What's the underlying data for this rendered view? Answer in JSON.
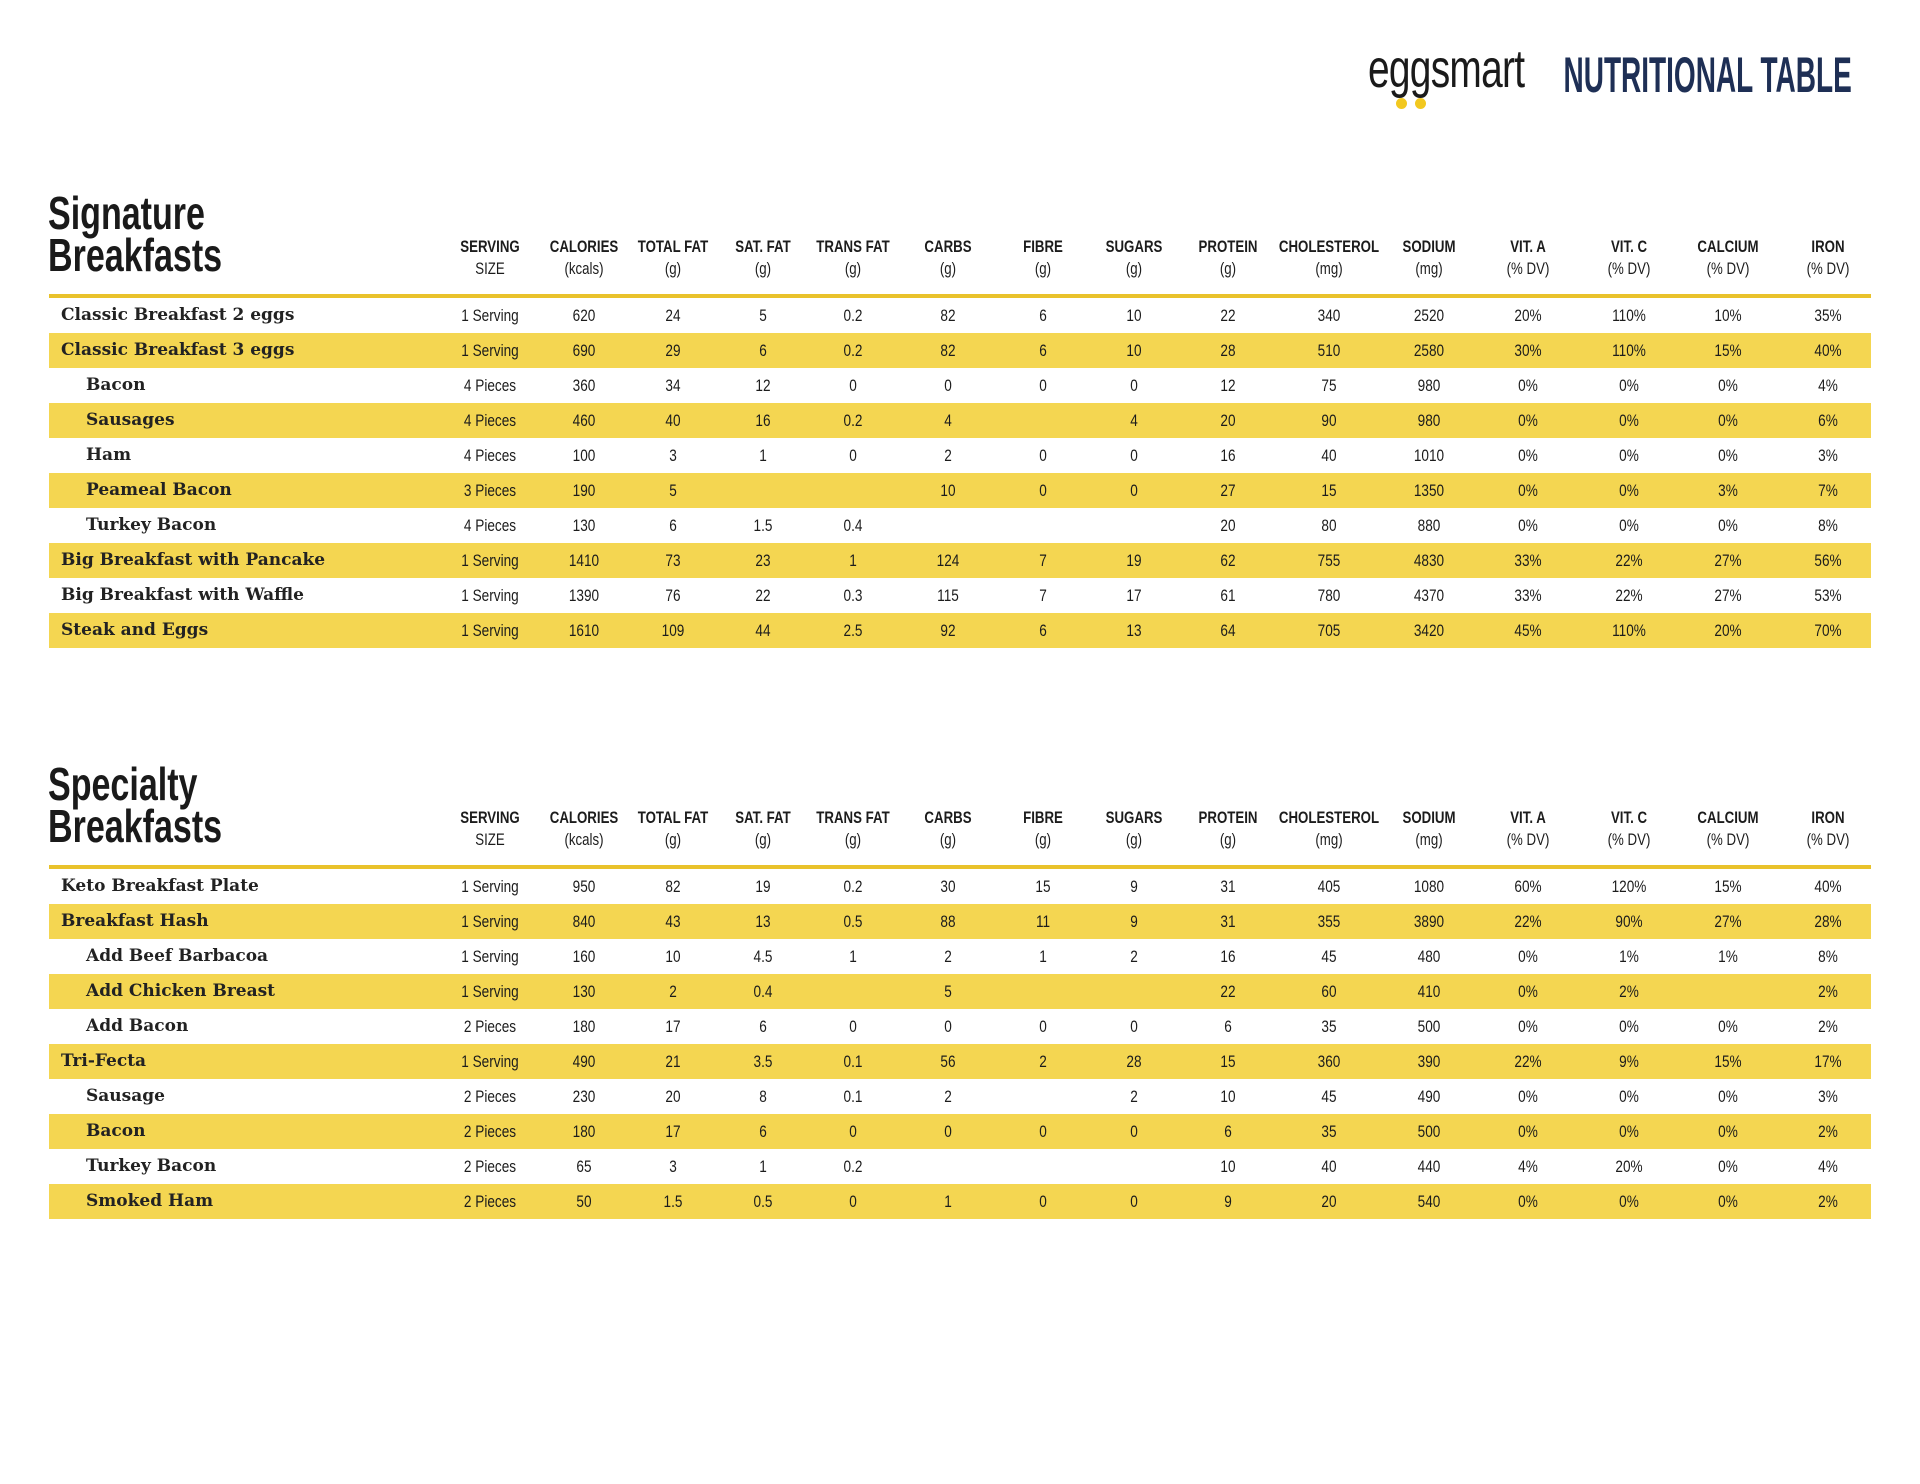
{
  "header": {
    "logo_text": "eggsmart",
    "title": "NUTRITIONAL TABLE",
    "title_color": "#1e2f55",
    "highlight_color": "#f4d651"
  },
  "columns": [
    {
      "label": "SERVING",
      "unit": "SIZE"
    },
    {
      "label": "CALORIES",
      "unit": "(kcals)"
    },
    {
      "label": "TOTAL FAT",
      "unit": "(g)"
    },
    {
      "label": "SAT. FAT",
      "unit": "(g)"
    },
    {
      "label": "TRANS FAT",
      "unit": "(g)"
    },
    {
      "label": "CARBS",
      "unit": "(g)"
    },
    {
      "label": "FIBRE",
      "unit": "(g)"
    },
    {
      "label": "SUGARS",
      "unit": "(g)"
    },
    {
      "label": "PROTEIN",
      "unit": "(g)"
    },
    {
      "label": "CHOLESTEROL",
      "unit": "(mg)"
    },
    {
      "label": "SODIUM",
      "unit": "(mg)"
    },
    {
      "label": "VIT. A",
      "unit": "(% DV)"
    },
    {
      "label": "VIT. C",
      "unit": "(% DV)"
    },
    {
      "label": "CALCIUM",
      "unit": "(% DV)"
    },
    {
      "label": "IRON",
      "unit": "(% DV)"
    }
  ],
  "sections": [
    {
      "title_lines": [
        "Signature",
        "Breakfasts"
      ],
      "rows": [
        {
          "name": "Classic Breakfast 2 eggs",
          "sub_item": false,
          "values": [
            "1 Serving",
            "620",
            "24",
            "5",
            "0.2",
            "82",
            "6",
            "10",
            "22",
            "340",
            "2520",
            "20%",
            "110%",
            "10%",
            "35%"
          ]
        },
        {
          "name": "Classic Breakfast 3 eggs",
          "sub_item": false,
          "values": [
            "1 Serving",
            "690",
            "29",
            "6",
            "0.2",
            "82",
            "6",
            "10",
            "28",
            "510",
            "2580",
            "30%",
            "110%",
            "15%",
            "40%"
          ]
        },
        {
          "name": "Bacon",
          "sub_item": true,
          "values": [
            "4 Pieces",
            "360",
            "34",
            "12",
            "0",
            "0",
            "0",
            "0",
            "12",
            "75",
            "980",
            "0%",
            "0%",
            "0%",
            "4%"
          ]
        },
        {
          "name": "Sausages",
          "sub_item": true,
          "values": [
            "4 Pieces",
            "460",
            "40",
            "16",
            "0.2",
            "4",
            "",
            "4",
            "20",
            "90",
            "980",
            "0%",
            "0%",
            "0%",
            "6%"
          ]
        },
        {
          "name": "Ham",
          "sub_item": true,
          "values": [
            "4 Pieces",
            "100",
            "3",
            "1",
            "0",
            "2",
            "0",
            "0",
            "16",
            "40",
            "1010",
            "0%",
            "0%",
            "0%",
            "3%"
          ]
        },
        {
          "name": "Peameal Bacon",
          "sub_item": true,
          "values": [
            "3 Pieces",
            "190",
            "5",
            "",
            "",
            "10",
            "0",
            "0",
            "27",
            "15",
            "1350",
            "0%",
            "0%",
            "3%",
            "7%"
          ]
        },
        {
          "name": "Turkey Bacon",
          "sub_item": true,
          "values": [
            "4 Pieces",
            "130",
            "6",
            "1.5",
            "0.4",
            "",
            "",
            "",
            "20",
            "80",
            "880",
            "0%",
            "0%",
            "0%",
            "8%"
          ]
        },
        {
          "name": "Big Breakfast with Pancake",
          "sub_item": false,
          "values": [
            "1 Serving",
            "1410",
            "73",
            "23",
            "1",
            "124",
            "7",
            "19",
            "62",
            "755",
            "4830",
            "33%",
            "22%",
            "27%",
            "56%"
          ]
        },
        {
          "name": "Big Breakfast with Waffle",
          "sub_item": false,
          "values": [
            "1 Serving",
            "1390",
            "76",
            "22",
            "0.3",
            "115",
            "7",
            "17",
            "61",
            "780",
            "4370",
            "33%",
            "22%",
            "27%",
            "53%"
          ]
        },
        {
          "name": "Steak and Eggs",
          "sub_item": false,
          "values": [
            "1 Serving",
            "1610",
            "109",
            "44",
            "2.5",
            "92",
            "6",
            "13",
            "64",
            "705",
            "3420",
            "45%",
            "110%",
            "20%",
            "70%"
          ]
        }
      ]
    },
    {
      "title_lines": [
        "Specialty",
        "Breakfasts"
      ],
      "rows": [
        {
          "name": "Keto Breakfast Plate",
          "sub_item": false,
          "values": [
            "1 Serving",
            "950",
            "82",
            "19",
            "0.2",
            "30",
            "15",
            "9",
            "31",
            "405",
            "1080",
            "60%",
            "120%",
            "15%",
            "40%"
          ]
        },
        {
          "name": "Breakfast Hash",
          "sub_item": false,
          "values": [
            "1 Serving",
            "840",
            "43",
            "13",
            "0.5",
            "88",
            "11",
            "9",
            "31",
            "355",
            "3890",
            "22%",
            "90%",
            "27%",
            "28%"
          ]
        },
        {
          "name": "Add Beef Barbacoa",
          "sub_item": true,
          "values": [
            "1 Serving",
            "160",
            "10",
            "4.5",
            "1",
            "2",
            "1",
            "2",
            "16",
            "45",
            "480",
            "0%",
            "1%",
            "1%",
            "8%"
          ]
        },
        {
          "name": "Add Chicken Breast",
          "sub_item": true,
          "values": [
            "1 Serving",
            "130",
            "2",
            "0.4",
            "",
            "5",
            "",
            "",
            "22",
            "60",
            "410",
            "0%",
            "2%",
            "",
            "2%"
          ]
        },
        {
          "name": "Add Bacon",
          "sub_item": true,
          "values": [
            "2 Pieces",
            "180",
            "17",
            "6",
            "0",
            "0",
            "0",
            "0",
            "6",
            "35",
            "500",
            "0%",
            "0%",
            "0%",
            "2%"
          ]
        },
        {
          "name": "Tri-Fecta",
          "sub_item": false,
          "values": [
            "1 Serving",
            "490",
            "21",
            "3.5",
            "0.1",
            "56",
            "2",
            "28",
            "15",
            "360",
            "390",
            "22%",
            "9%",
            "15%",
            "17%"
          ]
        },
        {
          "name": "Sausage",
          "sub_item": true,
          "values": [
            "2 Pieces",
            "230",
            "20",
            "8",
            "0.1",
            "2",
            "",
            "2",
            "10",
            "45",
            "490",
            "0%",
            "0%",
            "0%",
            "3%"
          ]
        },
        {
          "name": "Bacon",
          "sub_item": true,
          "values": [
            "2 Pieces",
            "180",
            "17",
            "6",
            "0",
            "0",
            "0",
            "0",
            "6",
            "35",
            "500",
            "0%",
            "0%",
            "0%",
            "2%"
          ]
        },
        {
          "name": "Turkey Bacon",
          "sub_item": true,
          "values": [
            "2 Pieces",
            "65",
            "3",
            "1",
            "0.2",
            "",
            "",
            "",
            "10",
            "40",
            "440",
            "4%",
            "20%",
            "0%",
            "4%"
          ]
        },
        {
          "name": "Smoked Ham",
          "sub_item": true,
          "values": [
            "2 Pieces",
            "50",
            "1.5",
            "0.5",
            "0",
            "1",
            "0",
            "0",
            "9",
            "20",
            "540",
            "0%",
            "0%",
            "0%",
            "2%"
          ]
        }
      ]
    }
  ]
}
